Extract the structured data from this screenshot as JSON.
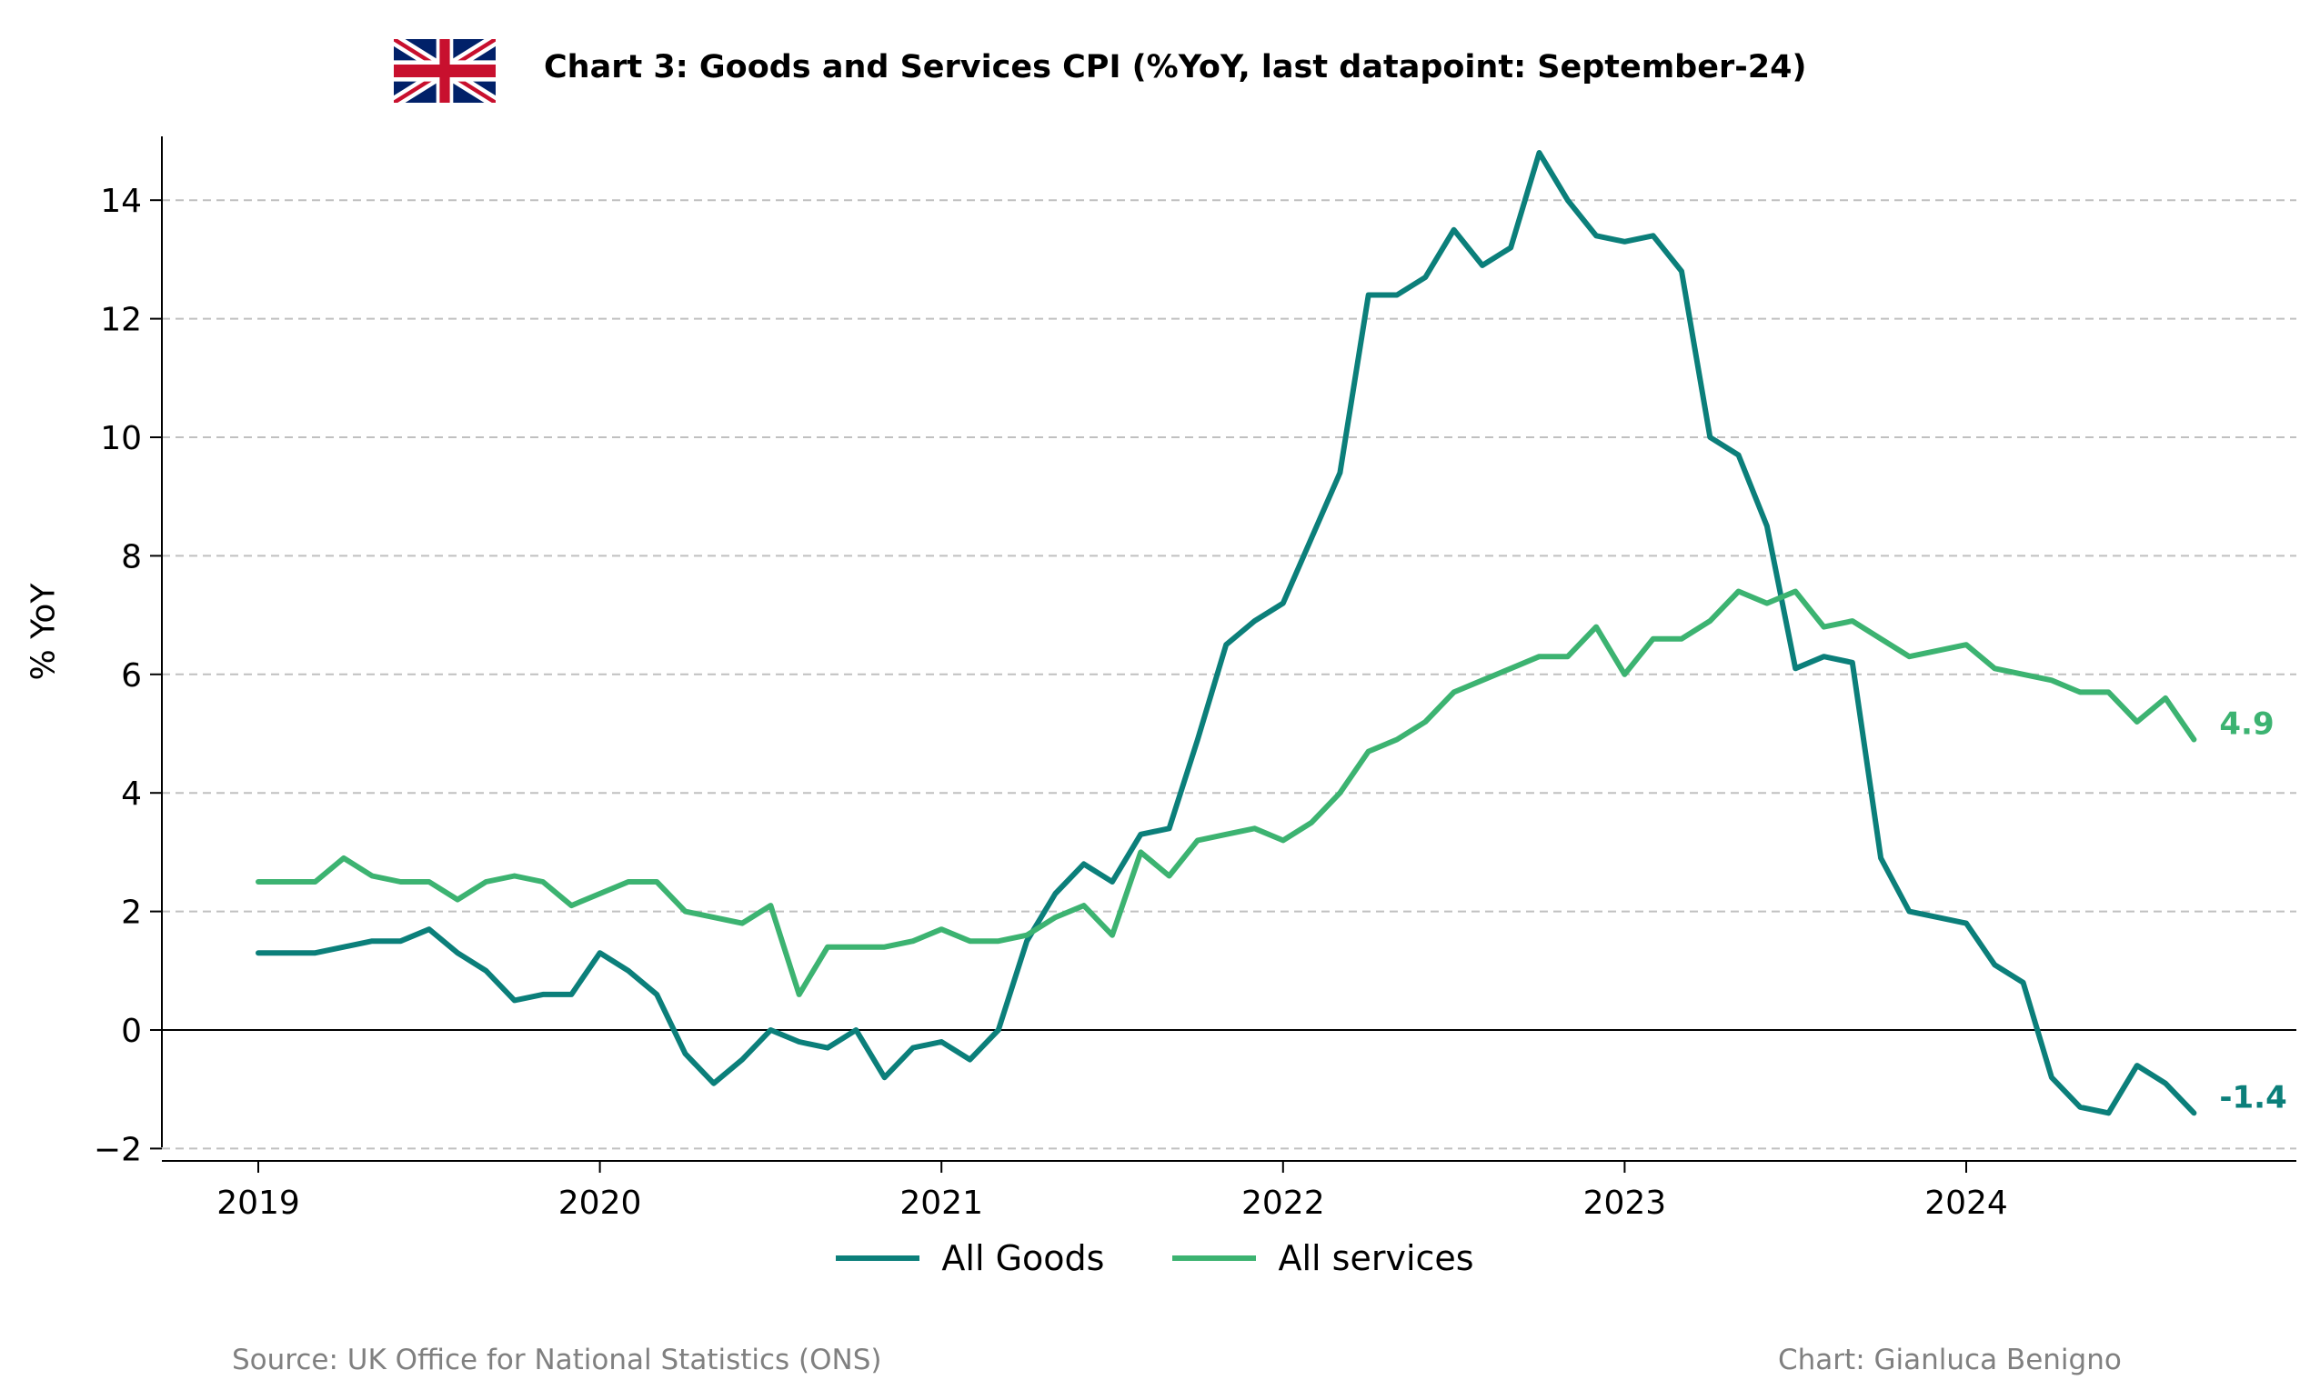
{
  "header": {
    "flag_icon": "uk-flag-icon",
    "title": "Chart 3: Goods and Services CPI (%YoY, last datapoint: September-24)"
  },
  "footer": {
    "source": "Source: UK Office for National Statistics (ONS)",
    "credit": "Chart: Gianluca Benigno"
  },
  "colors": {
    "goods": "#0b7f7a",
    "services": "#3cb371",
    "grid": "#c0c0c0",
    "zero_line": "#000000"
  },
  "chart_data": {
    "type": "line",
    "title": "Chart 3: Goods and Services CPI (%YoY, last datapoint: September-24)",
    "xlabel": "",
    "ylabel": "% YoY",
    "ylim": [
      -2.2,
      14.8
    ],
    "yticks": [
      -2,
      0,
      2,
      4,
      6,
      8,
      10,
      12,
      14
    ],
    "ytick_labels": [
      "−2",
      "0",
      "2",
      "4",
      "6",
      "8",
      "10",
      "12",
      "14"
    ],
    "xticks": [
      "2019",
      "2020",
      "2021",
      "2022",
      "2023",
      "2024"
    ],
    "x_start": "2019-01",
    "x_end": "2024-09",
    "grid": "horizontal dashed",
    "legend_position": "bottom-center",
    "series": [
      {
        "name": "All Goods",
        "end_label": "-1.4",
        "values": [
          1.3,
          1.3,
          1.3,
          1.4,
          1.5,
          1.5,
          1.7,
          1.3,
          1.0,
          0.5,
          0.6,
          0.6,
          1.3,
          1.0,
          0.6,
          -0.4,
          -0.9,
          -0.5,
          0.0,
          -0.2,
          -0.3,
          0.0,
          -0.8,
          -0.3,
          -0.2,
          -0.5,
          0.0,
          1.5,
          2.3,
          2.8,
          2.5,
          3.3,
          3.4,
          4.9,
          6.5,
          6.9,
          7.2,
          8.3,
          9.4,
          12.4,
          12.4,
          12.7,
          13.5,
          12.9,
          13.2,
          14.8,
          14.0,
          13.4,
          13.3,
          13.4,
          12.8,
          10.0,
          9.7,
          8.5,
          6.1,
          6.3,
          6.2,
          2.9,
          2.0,
          1.9,
          1.8,
          1.1,
          0.8,
          -0.8,
          -1.3,
          -1.4,
          -0.6,
          -0.9,
          -1.4
        ]
      },
      {
        "name": "All services",
        "end_label": "4.9",
        "values": [
          2.5,
          2.5,
          2.5,
          2.9,
          2.6,
          2.5,
          2.5,
          2.2,
          2.5,
          2.6,
          2.5,
          2.1,
          2.3,
          2.5,
          2.5,
          2.0,
          1.9,
          1.8,
          2.1,
          0.6,
          1.4,
          1.4,
          1.4,
          1.5,
          1.7,
          1.5,
          1.5,
          1.6,
          1.9,
          2.1,
          1.6,
          3.0,
          2.6,
          3.2,
          3.3,
          3.4,
          3.2,
          3.5,
          4.0,
          4.7,
          4.9,
          5.2,
          5.7,
          5.9,
          6.1,
          6.3,
          6.3,
          6.8,
          6.0,
          6.6,
          6.6,
          6.9,
          7.4,
          7.2,
          7.4,
          6.8,
          6.9,
          6.6,
          6.3,
          6.4,
          6.5,
          6.1,
          6.0,
          5.9,
          5.7,
          5.7,
          5.2,
          5.6,
          4.9
        ]
      }
    ]
  }
}
